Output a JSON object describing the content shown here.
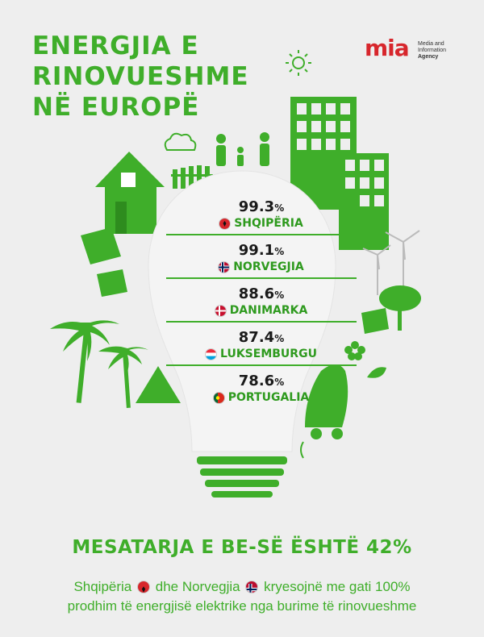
{
  "title": {
    "line1": "ENERGJIA E",
    "line2": "RINOVUESHME",
    "line3": "NË EUROPË"
  },
  "logo": {
    "word": "mia",
    "sub1": "Media and",
    "sub2": "Information",
    "sub3": "Agency"
  },
  "colors": {
    "green": "#3fae2a",
    "bulb": "#f4f4f4",
    "background": "#eeeeee"
  },
  "rankings": [
    {
      "value": "99.3",
      "unit": "%",
      "country": "SHQIPËRIA",
      "flag": "albania-flag-icon"
    },
    {
      "value": "99.1",
      "unit": "%",
      "country": "NORVEGJIA",
      "flag": "norway-flag-icon"
    },
    {
      "value": "88.6",
      "unit": "%",
      "country": "DANIMARKA",
      "flag": "denmark-flag-icon"
    },
    {
      "value": "87.4",
      "unit": "%",
      "country": "LUKSEMBURGU",
      "flag": "luxembourg-flag-icon"
    },
    {
      "value": "78.6",
      "unit": "%",
      "country": "PORTUGALIA",
      "flag": "portugal-flag-icon"
    }
  ],
  "subtitle": "MESATARJA E BE-SË  ËSHTË 42%",
  "note": {
    "part1": "Shqipëria",
    "part2": "dhe Norvegjia",
    "part3": "kryesojnë me gati 100%",
    "line2": "prodhim të energjisë elektrike nga burime të rinovueshme"
  }
}
